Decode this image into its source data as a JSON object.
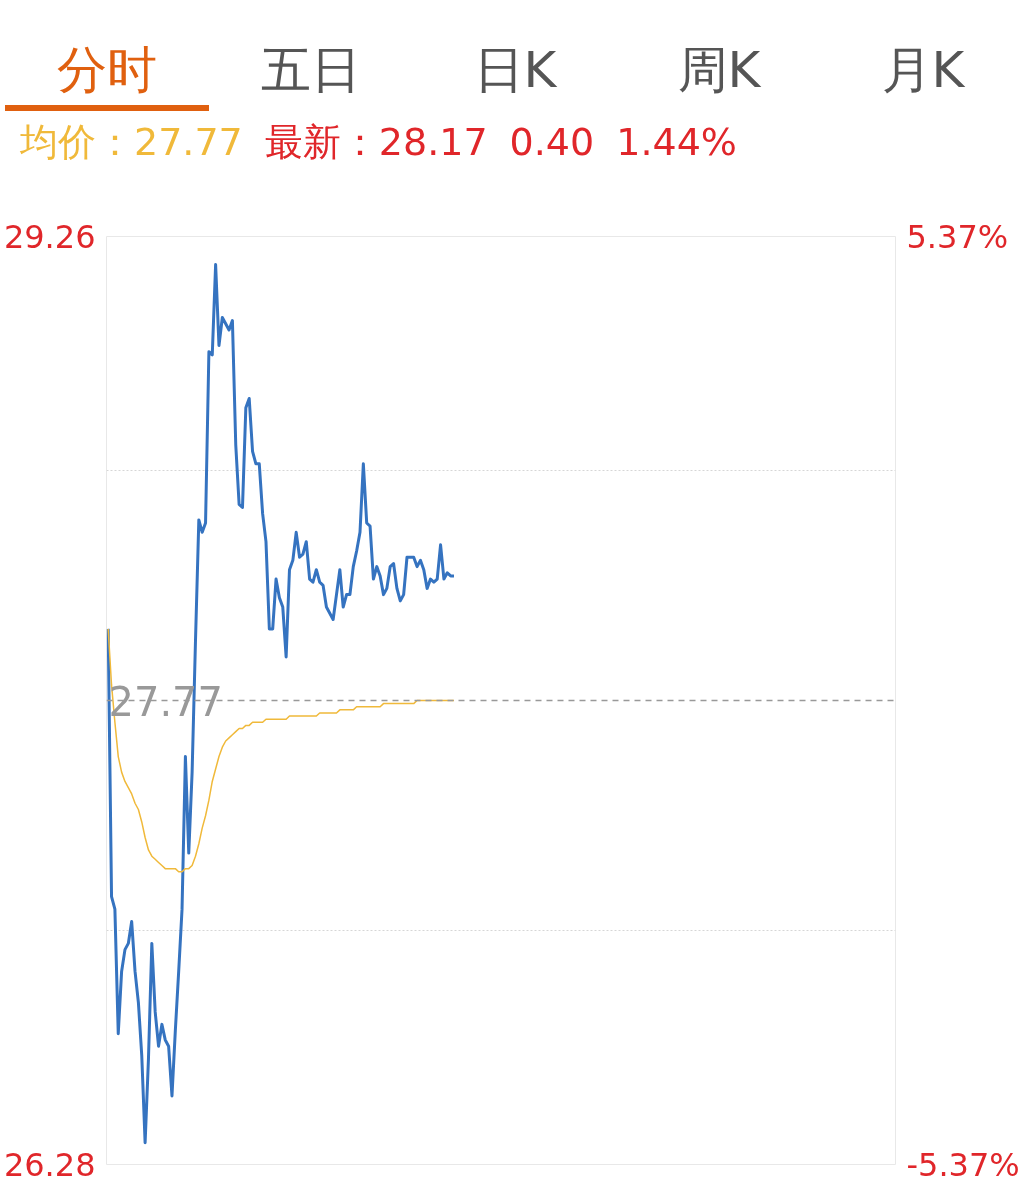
{
  "chart_data": {
    "type": "line",
    "annotations": [
      "分时",
      "五日",
      "日K",
      "周K",
      "月K",
      "均价：27.77",
      "最新：28.17",
      "0.40",
      "1.44%"
    ],
    "categories": [
      null,
      null,
      null,
      null,
      null,
      null,
      null,
      null,
      null,
      null,
      null,
      null,
      null,
      null,
      null,
      null,
      null,
      null,
      null,
      null,
      null,
      null,
      null,
      null,
      null,
      null,
      null,
      null,
      null,
      null,
      null,
      null,
      null,
      null,
      null,
      null,
      null,
      null,
      null,
      null,
      null,
      null,
      null,
      null,
      null,
      null,
      null,
      null,
      null,
      null,
      null,
      null,
      null,
      null,
      null,
      null,
      null,
      null,
      null,
      null,
      null,
      null,
      null,
      null,
      null,
      null,
      null,
      null,
      null,
      null,
      null,
      null,
      null,
      null,
      null,
      null,
      null,
      null,
      null,
      null,
      null,
      null,
      null,
      null,
      null,
      null,
      null,
      null,
      null,
      null,
      null,
      null,
      null,
      null,
      null,
      null,
      null,
      null,
      null,
      null,
      null,
      null,
      null,
      null,
      null,
      null,
      null,
      null,
      null,
      null,
      null,
      null,
      null,
      null,
      null,
      null,
      null,
      null,
      null,
      null,
      null,
      null,
      null,
      null,
      null,
      null,
      null,
      null,
      null,
      null,
      null,
      null,
      null,
      null,
      null,
      null,
      null,
      null,
      null,
      null,
      null,
      null,
      null,
      null,
      null,
      null,
      null,
      null,
      null,
      null,
      null,
      null,
      null,
      null,
      null,
      null,
      null,
      null,
      null,
      null,
      null,
      null,
      null,
      null,
      null,
      null,
      null,
      null,
      null,
      null,
      null,
      null,
      null,
      null,
      null,
      null,
      null,
      null,
      null,
      null,
      null,
      null,
      null,
      null,
      null,
      null,
      null,
      null,
      null,
      null,
      null,
      null,
      null,
      null,
      null,
      null,
      null,
      null,
      null,
      null,
      null,
      null,
      null,
      null,
      null,
      null,
      null,
      null,
      null,
      null,
      null,
      null,
      null,
      null,
      null,
      null,
      null,
      null,
      null,
      null,
      null,
      null,
      null,
      null,
      null,
      null,
      null,
      null,
      null,
      null,
      null,
      null,
      null,
      null,
      null
    ],
    "ylim": [
      26.28,
      29.26
    ],
    "yticks": [
      29.26,
      {
        "value": 28.51,
        "label": null
      },
      {
        "value": 27.03,
        "label": null
      },
      26.28
    ],
    "y2lim": [
      -5.37,
      5.37
    ],
    "y2ticks": [
      {
        "value": 5.37,
        "label": "5.37%"
      },
      {
        "value": -5.37,
        "label": "-5.37%"
      }
    ],
    "ref_lines": [
      {
        "axis": "y",
        "value": 27.77,
        "label": "27.77",
        "color": "#999999",
        "line_style": "dashed"
      }
    ],
    "grid": "y",
    "series": [
      {
        "color": "#3573c0",
        "values": [
          28.0,
          27.14,
          27.1,
          26.7,
          26.9,
          26.97,
          26.99,
          27.06,
          26.9,
          26.8,
          26.63,
          26.35,
          26.62,
          26.99,
          26.77,
          26.66,
          26.73,
          26.68,
          26.66,
          26.5,
          26.71,
          26.9,
          27.1,
          27.59,
          27.28,
          27.54,
          27.96,
          28.35,
          28.31,
          28.34,
          28.89,
          28.88,
          29.17,
          28.91,
          29.0,
          28.98,
          28.96,
          28.99,
          28.59,
          28.4,
          28.39,
          28.71,
          28.74,
          28.57,
          28.53,
          28.53,
          28.37,
          28.28,
          28.0,
          28.0,
          28.16,
          28.1,
          28.07,
          27.91,
          28.19,
          28.22,
          28.31,
          28.23,
          28.24,
          28.28,
          28.16,
          28.15,
          28.19,
          28.15,
          28.14,
          28.07,
          28.05,
          28.03,
          28.11,
          28.19,
          28.07,
          28.11,
          28.11,
          28.2,
          28.25,
          28.31,
          28.53,
          28.34,
          28.33,
          28.16,
          28.2,
          28.17,
          28.11,
          28.13,
          28.2,
          28.21,
          28.13,
          28.09,
          28.11,
          28.23,
          28.23,
          28.23,
          28.2,
          28.22,
          28.19,
          28.13,
          28.16,
          28.15,
          28.16,
          28.27,
          28.16,
          28.18,
          28.17,
          28.17,
          null,
          null,
          null,
          null,
          null,
          null,
          null,
          null,
          null,
          null,
          null,
          null,
          null,
          null,
          null,
          null,
          null,
          null,
          null,
          null,
          null,
          null,
          null,
          null,
          null,
          null,
          null,
          null,
          null,
          null,
          null,
          null,
          null,
          null,
          null,
          null,
          null,
          null,
          null,
          null,
          null,
          null,
          null,
          null,
          null,
          null,
          null,
          null,
          null,
          null,
          null,
          null,
          null,
          null,
          null,
          null,
          null,
          null,
          null,
          null,
          null,
          null,
          null,
          null,
          null,
          null,
          null,
          null,
          null,
          null,
          null,
          null,
          null,
          null,
          null,
          null,
          null,
          null,
          null,
          null,
          null,
          null,
          null,
          null,
          null,
          null,
          null,
          null,
          null,
          null,
          null,
          null,
          null,
          null,
          null,
          null,
          null,
          null,
          null,
          null,
          null,
          null,
          null,
          null,
          null,
          null,
          null,
          null,
          null,
          null,
          null,
          null,
          null,
          null,
          null,
          null,
          null,
          null,
          null,
          null,
          null,
          null,
          null,
          null,
          null,
          null,
          null,
          null,
          null,
          null,
          null
        ]
      },
      {
        "color": "#f0b93a",
        "values": [
          28.0,
          27.82,
          27.7,
          27.59,
          27.54,
          27.51,
          27.49,
          27.47,
          27.44,
          27.42,
          27.38,
          27.33,
          27.29,
          27.27,
          27.26,
          27.25,
          27.24,
          27.23,
          27.23,
          27.23,
          27.23,
          27.22,
          27.22,
          27.23,
          27.23,
          27.24,
          27.27,
          27.31,
          27.36,
          27.4,
          27.45,
          27.51,
          27.55,
          27.59,
          27.62,
          27.64,
          27.65,
          27.66,
          27.67,
          27.68,
          27.68,
          27.69,
          27.69,
          27.7,
          27.7,
          27.7,
          27.7,
          27.71,
          27.71,
          27.71,
          27.71,
          27.71,
          27.71,
          27.71,
          27.72,
          27.72,
          27.72,
          27.72,
          27.72,
          27.72,
          27.72,
          27.72,
          27.72,
          27.73,
          27.73,
          27.73,
          27.73,
          27.73,
          27.73,
          27.74,
          27.74,
          27.74,
          27.74,
          27.74,
          27.75,
          27.75,
          27.75,
          27.75,
          27.75,
          27.75,
          27.75,
          27.75,
          27.76,
          27.76,
          27.76,
          27.76,
          27.76,
          27.76,
          27.76,
          27.76,
          27.76,
          27.76,
          27.77,
          27.77,
          27.77,
          27.77,
          27.77,
          27.77,
          27.77,
          27.77,
          27.77,
          27.77,
          27.77,
          27.77,
          null,
          null,
          null,
          null,
          null,
          null,
          null,
          null,
          null,
          null,
          null,
          null,
          null,
          null,
          null,
          null,
          null,
          null,
          null,
          null,
          null,
          null,
          null,
          null,
          null,
          null,
          null,
          null,
          null,
          null,
          null,
          null,
          null,
          null,
          null,
          null,
          null,
          null,
          null,
          null,
          null,
          null,
          null,
          null,
          null,
          null,
          null,
          null,
          null,
          null,
          null,
          null,
          null,
          null,
          null,
          null,
          null,
          null,
          null,
          null,
          null,
          null,
          null,
          null,
          null,
          null,
          null,
          null,
          null,
          null,
          null,
          null,
          null,
          null,
          null,
          null,
          null,
          null,
          null,
          null,
          null,
          null,
          null,
          null,
          null,
          null,
          null,
          null,
          null,
          null,
          null,
          null,
          null,
          null,
          null,
          null,
          null,
          null,
          null,
          null,
          null,
          null,
          null,
          null,
          null,
          null,
          null,
          null,
          null,
          null,
          null,
          null,
          null,
          null,
          null,
          null,
          null,
          null,
          null,
          null,
          null,
          null,
          null,
          null,
          null,
          null,
          null,
          null,
          null,
          null,
          null
        ]
      }
    ]
  }
}
